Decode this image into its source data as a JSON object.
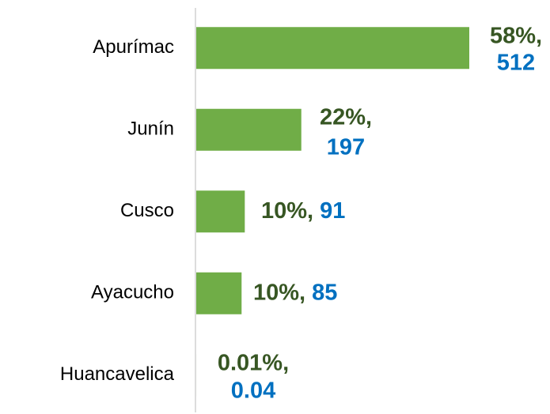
{
  "chart_data": {
    "type": "bar",
    "orientation": "horizontal",
    "categories": [
      "Apurímac",
      "Junín",
      "Cusco",
      "Ayacucho",
      "Huancavelica"
    ],
    "values": [
      512,
      197,
      91,
      85,
      0.04
    ],
    "color": "#70ad47",
    "percents": [
      58,
      22,
      10,
      10,
      0.01
    ],
    "percent_labels": [
      "58%,",
      "22%,",
      "10%,",
      "10%,",
      "0.01%,"
    ],
    "percent_color": "#375623",
    "value_color": "#0070c0"
  }
}
